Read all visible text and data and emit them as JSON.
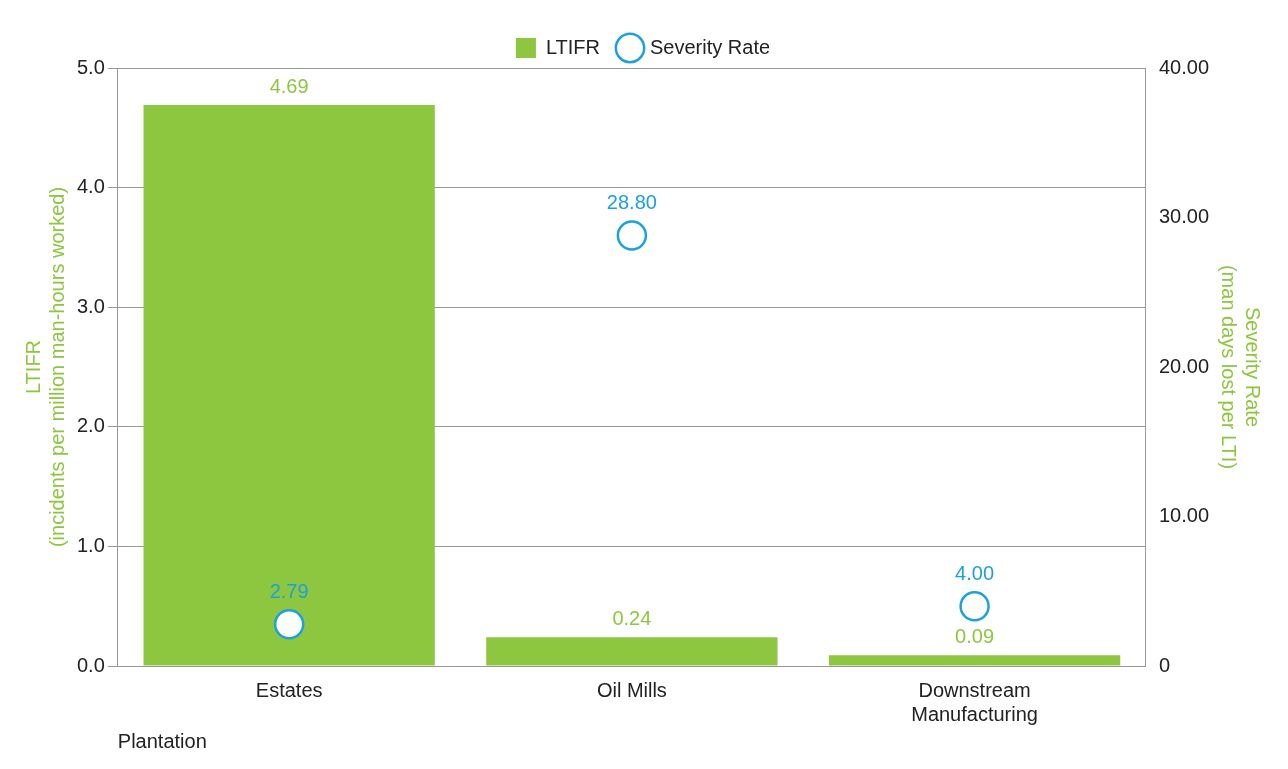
{
  "chart_data": {
    "type": "bar",
    "categories": [
      "Estates",
      "Oil Mills",
      "Downstream Manufacturing"
    ],
    "xlabel": "Plantation",
    "ylabel": "LTIFR\n(incidents per million man-hours worked)",
    "y2label": "Severity Rate\n(man days lost per LTI)",
    "series": [
      {
        "name": "LTIFR",
        "color": "#8dc63f",
        "values": [
          4.69,
          0.24,
          0.09
        ],
        "value_labels": [
          "4.69",
          "0.24",
          "0.09"
        ]
      },
      {
        "name": "Severity Rate",
        "type": "scatter",
        "axis": "y2",
        "marker": "circle",
        "color": "#1ba1dc",
        "values": [
          2.79,
          28.8,
          4.0
        ],
        "value_labels": [
          "2.79",
          "28.80",
          "4.00"
        ]
      }
    ],
    "ylim": [
      0,
      5
    ],
    "yticks": [
      {
        "value": 0,
        "label": "0.0"
      },
      {
        "value": 1,
        "label": "1.0"
      },
      {
        "value": 2,
        "label": "2.0"
      },
      {
        "value": 3,
        "label": "3.0"
      },
      {
        "value": 4,
        "label": "4.0"
      },
      {
        "value": 5,
        "label": "5.0"
      }
    ],
    "y2lim": [
      0,
      40
    ],
    "y2ticks": [
      0,
      {
        "value": 10,
        "label": "10.00"
      },
      {
        "value": 20,
        "label": "20.00"
      },
      {
        "value": 30,
        "label": "30.00"
      },
      {
        "value": 40,
        "label": "40.00"
      }
    ],
    "grid": "y",
    "legend": "top"
  }
}
